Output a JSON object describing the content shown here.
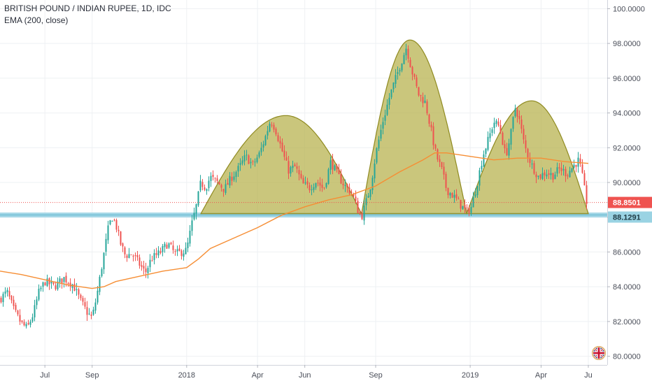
{
  "legend": {
    "symbol_line": "BRITISH POUND / INDIAN RUPEE, 1D, IDC",
    "indicator_line": "EMA (200, close)"
  },
  "chart_data": {
    "type": "candlestick",
    "title": "BRITISH POUND / INDIAN RUPEE, 1D, IDC",
    "ylim": [
      79.5,
      100.5
    ],
    "y_ticks": [
      "80.0000",
      "82.0000",
      "84.0000",
      "86.0000",
      "88.0000",
      "90.0000",
      "92.0000",
      "94.0000",
      "96.0000",
      "98.0000",
      "100.0000"
    ],
    "x_ticks": [
      {
        "label": "Jul",
        "month": 1
      },
      {
        "label": "Sep",
        "month": 3
      },
      {
        "label": "2018",
        "month": 7
      },
      {
        "label": "Apr",
        "month": 10
      },
      {
        "label": "Jun",
        "month": 12
      },
      {
        "label": "Sep",
        "month": 15
      },
      {
        "label": "2019",
        "month": 19
      },
      {
        "label": "Apr",
        "month": 22
      },
      {
        "label": "Ju",
        "month": 24
      }
    ],
    "x_range_months": [
      -0.9,
      24.8
    ],
    "price_path": [
      [
        -0.9,
        83.3
      ],
      [
        -0.6,
        83.7
      ],
      [
        -0.3,
        82.6
      ],
      [
        0.0,
        81.9
      ],
      [
        0.25,
        81.6
      ],
      [
        0.5,
        82.4
      ],
      [
        0.75,
        83.7
      ],
      [
        1.0,
        84.3
      ],
      [
        1.4,
        84.0
      ],
      [
        1.8,
        84.5
      ],
      [
        2.2,
        84.1
      ],
      [
        2.5,
        83.2
      ],
      [
        2.8,
        82.5
      ],
      [
        3.0,
        82.2
      ],
      [
        3.2,
        83.5
      ],
      [
        3.45,
        85.5
      ],
      [
        3.7,
        87.5
      ],
      [
        3.85,
        88.0
      ],
      [
        4.0,
        87.6
      ],
      [
        4.2,
        86.5
      ],
      [
        4.4,
        85.8
      ],
      [
        4.7,
        85.9
      ],
      [
        5.0,
        85.3
      ],
      [
        5.25,
        84.8
      ],
      [
        5.5,
        85.6
      ],
      [
        5.9,
        86.0
      ],
      [
        6.2,
        86.5
      ],
      [
        6.5,
        85.9
      ],
      [
        6.8,
        86.0
      ],
      [
        7.0,
        86.1
      ],
      [
        7.2,
        87.5
      ],
      [
        7.4,
        88.6
      ],
      [
        7.6,
        90.0
      ],
      [
        7.8,
        89.7
      ],
      [
        8.0,
        90.3
      ],
      [
        8.3,
        90.0
      ],
      [
        8.6,
        89.6
      ],
      [
        8.9,
        90.3
      ],
      [
        9.2,
        90.8
      ],
      [
        9.5,
        91.5
      ],
      [
        9.8,
        91.0
      ],
      [
        10.1,
        91.7
      ],
      [
        10.35,
        92.7
      ],
      [
        10.55,
        93.6
      ],
      [
        10.75,
        93.1
      ],
      [
        11.0,
        92.0
      ],
      [
        11.3,
        90.7
      ],
      [
        11.6,
        90.9
      ],
      [
        11.9,
        89.9
      ],
      [
        12.2,
        89.7
      ],
      [
        12.5,
        90.1
      ],
      [
        12.8,
        89.6
      ],
      [
        13.1,
        91.2
      ],
      [
        13.4,
        90.4
      ],
      [
        13.7,
        89.8
      ],
      [
        14.0,
        89.4
      ],
      [
        14.25,
        88.4
      ],
      [
        14.4,
        88.0
      ],
      [
        14.6,
        88.9
      ],
      [
        14.8,
        89.9
      ],
      [
        15.0,
        91.6
      ],
      [
        15.3,
        93.5
      ],
      [
        15.6,
        95.0
      ],
      [
        15.9,
        96.2
      ],
      [
        16.1,
        97.0
      ],
      [
        16.3,
        97.8
      ],
      [
        16.5,
        96.6
      ],
      [
        16.8,
        95.1
      ],
      [
        17.1,
        94.6
      ],
      [
        17.3,
        93.3
      ],
      [
        17.55,
        91.6
      ],
      [
        17.8,
        90.7
      ],
      [
        18.0,
        89.6
      ],
      [
        18.3,
        89.2
      ],
      [
        18.6,
        88.7
      ],
      [
        18.85,
        88.3
      ],
      [
        19.05,
        88.6
      ],
      [
        19.3,
        90.0
      ],
      [
        19.55,
        91.6
      ],
      [
        19.8,
        92.6
      ],
      [
        20.0,
        93.5
      ],
      [
        20.25,
        93.2
      ],
      [
        20.5,
        91.5
      ],
      [
        20.7,
        92.6
      ],
      [
        20.9,
        94.3
      ],
      [
        21.05,
        93.8
      ],
      [
        21.3,
        92.1
      ],
      [
        21.6,
        91.0
      ],
      [
        21.9,
        90.3
      ],
      [
        22.2,
        90.6
      ],
      [
        22.5,
        90.4
      ],
      [
        22.8,
        90.8
      ],
      [
        23.1,
        90.5
      ],
      [
        23.4,
        91.0
      ],
      [
        23.6,
        91.3
      ],
      [
        23.75,
        90.3
      ],
      [
        23.9,
        89.1
      ],
      [
        24.0,
        88.3
      ]
    ],
    "ema_200": [
      [
        -0.9,
        84.9
      ],
      [
        0.0,
        84.7
      ],
      [
        1.0,
        84.4
      ],
      [
        2.0,
        84.1
      ],
      [
        3.0,
        83.9
      ],
      [
        3.5,
        84.0
      ],
      [
        4.0,
        84.3
      ],
      [
        5.0,
        84.6
      ],
      [
        6.0,
        84.9
      ],
      [
        7.0,
        85.1
      ],
      [
        7.5,
        85.6
      ],
      [
        8.0,
        86.2
      ],
      [
        9.0,
        86.8
      ],
      [
        10.0,
        87.4
      ],
      [
        11.0,
        88.1
      ],
      [
        12.0,
        88.6
      ],
      [
        13.0,
        89.0
      ],
      [
        14.0,
        89.3
      ],
      [
        15.0,
        89.8
      ],
      [
        16.0,
        90.6
      ],
      [
        17.0,
        91.3
      ],
      [
        17.5,
        91.7
      ],
      [
        18.0,
        91.7
      ],
      [
        19.0,
        91.5
      ],
      [
        20.0,
        91.3
      ],
      [
        21.0,
        91.4
      ],
      [
        22.0,
        91.4
      ],
      [
        23.0,
        91.2
      ],
      [
        24.0,
        91.1
      ]
    ],
    "arcs": [
      {
        "x_start": 7.6,
        "x_peak": 11.2,
        "x_end": 14.4,
        "base": 88.2,
        "peak": 93.85
      },
      {
        "x_start": 14.4,
        "x_peak": 16.45,
        "x_end": 18.85,
        "base": 88.2,
        "peak": 98.2
      },
      {
        "x_start": 18.85,
        "x_peak": 21.6,
        "x_end": 24.0,
        "base": 88.2,
        "peak": 94.7
      }
    ],
    "support_level": 88.1291,
    "last_price": 88.8501,
    "price_labels": {
      "last_price": "88.8501",
      "support": "88.1291"
    },
    "colors": {
      "up": "#26a69a",
      "down": "#ef5350",
      "ema": "#f68e34",
      "arc_fill": "#b5b04a",
      "arc_stroke": "#8f8a20",
      "support_band": "#9ad3e3",
      "last_price_bg": "#ef5350",
      "support_bg": "#9ad3e3"
    },
    "grid": true
  }
}
